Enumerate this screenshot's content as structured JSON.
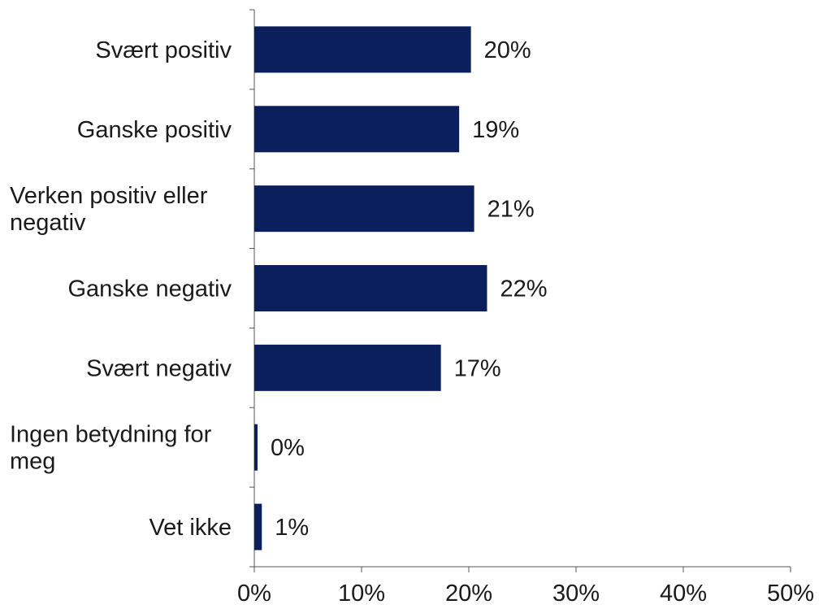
{
  "chart_data": {
    "type": "bar",
    "orientation": "horizontal",
    "categories": [
      [
        "Svært positiv"
      ],
      [
        "Ganske positiv"
      ],
      [
        "Verken positiv eller",
        "negativ"
      ],
      [
        "Ganske negativ"
      ],
      [
        "Svært negativ"
      ],
      [
        "Ingen betydning for",
        "meg"
      ],
      [
        "Vet ikke"
      ]
    ],
    "values": [
      20.2,
      19.1,
      20.5,
      21.7,
      17.4,
      0.3,
      0.7
    ],
    "data_labels": [
      "20%",
      "19%",
      "21%",
      "22%",
      "17%",
      "0%",
      "1%"
    ],
    "xlim": [
      0,
      50
    ],
    "x_ticks": [
      0,
      10,
      20,
      30,
      40,
      50
    ],
    "x_tick_labels": [
      "0%",
      "10%",
      "20%",
      "30%",
      "40%",
      "50%"
    ],
    "bar_color": "#0a1f5c",
    "grid": false,
    "legend": "none"
  }
}
